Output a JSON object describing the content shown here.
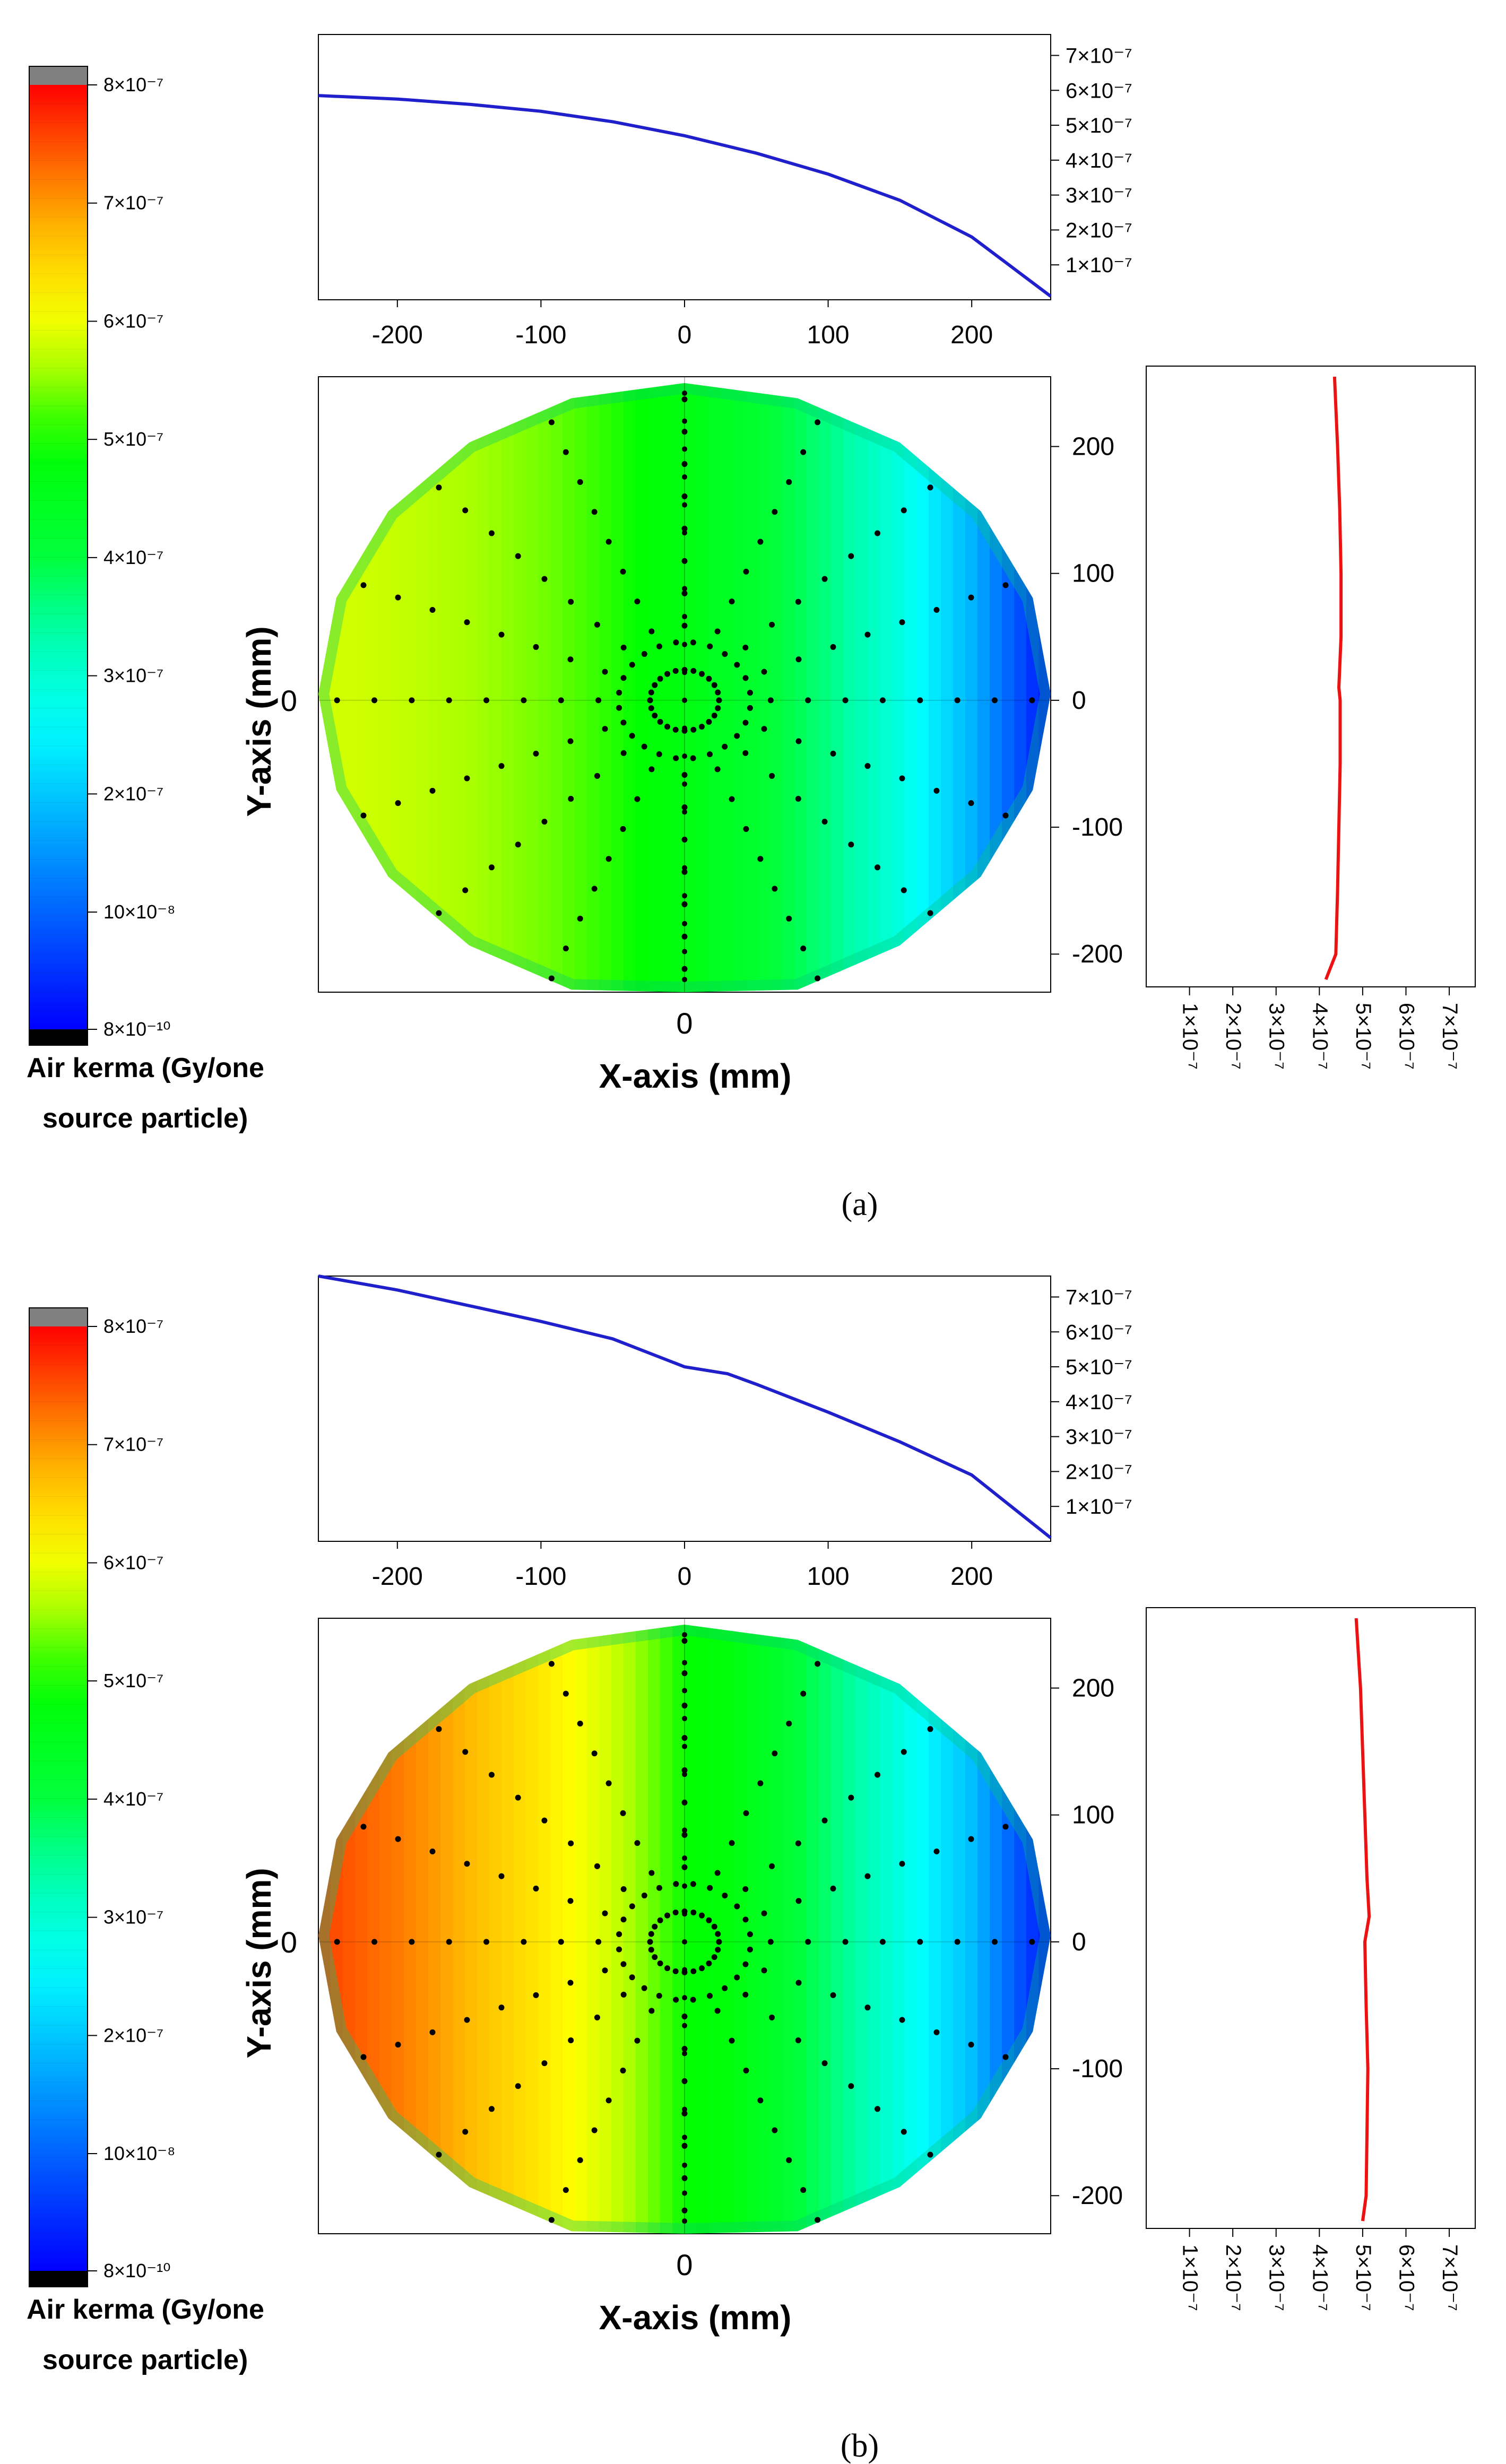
{
  "figure": {
    "colorbar_title_line1": "Air kerma (Gy/one",
    "colorbar_title_line2": "source particle)",
    "colorbar_tick_labels": [
      "8×10⁻⁷",
      "7×10⁻⁷",
      "6×10⁻⁷",
      "5×10⁻⁷",
      "4×10⁻⁷",
      "3×10⁻⁷",
      "2×10⁻⁷",
      "10×10⁻⁸",
      "8×10⁻¹⁰"
    ],
    "colorbar_tick_values": [
      8e-07,
      7e-07,
      6e-07,
      5e-07,
      4e-07,
      3e-07,
      2e-07,
      1e-07,
      8e-10
    ],
    "colors": {
      "profile_x": "#1f1fcc",
      "profile_y": "#ee1111",
      "axis": "#000000",
      "grid": "#c8c8c8",
      "scale": [
        "#000000",
        "#0000ff",
        "#0060ff",
        "#00c8ff",
        "#00ffff",
        "#00ffb0",
        "#00ff30",
        "#00ff00",
        "#a8ff00",
        "#ffff00",
        "#ffd000",
        "#ff9900",
        "#ff5000",
        "#ff0000",
        "#808080"
      ]
    }
  },
  "chart_data": [
    {
      "panel": "(a)",
      "type": "heatmap",
      "title": "",
      "xlabel": "X-axis (mm)",
      "ylabel": "Y-axis (mm)",
      "xlim": [
        -255,
        255
      ],
      "ylim": [
        -230,
        255
      ],
      "x_tick_label": "0",
      "y_tick_label": "0",
      "colorbar_range": [
        8e-10,
        8e-07
      ],
      "gradient_description": "high on left (yellow), decreasing to right (blue)",
      "profile_x": {
        "type": "line",
        "xlim": [
          -255,
          255
        ],
        "x_ticks": [
          -200,
          -100,
          0,
          100,
          200
        ],
        "y_ticks": [
          1e-07,
          2e-07,
          3e-07,
          4e-07,
          5e-07,
          6e-07,
          7e-07
        ],
        "y_tick_labels": [
          "1×10⁻⁷",
          "2×10⁻⁷",
          "3×10⁻⁷",
          "4×10⁻⁷",
          "5×10⁻⁷",
          "6×10⁻⁷",
          "7×10⁻⁷"
        ],
        "ylim": [
          0,
          7.6e-07
        ],
        "x": [
          -255,
          -200,
          -150,
          -100,
          -50,
          0,
          50,
          100,
          150,
          200,
          255
        ],
        "values": [
          5.85e-07,
          5.75e-07,
          5.6e-07,
          5.4e-07,
          5.1e-07,
          4.7e-07,
          4.2e-07,
          3.6e-07,
          2.85e-07,
          1.8e-07,
          1e-08
        ]
      },
      "profile_y": {
        "type": "line",
        "ylim": [
          -230,
          255
        ],
        "y_ticks": [
          -200,
          -100,
          0,
          100,
          200
        ],
        "x_ticks": [
          1e-07,
          2e-07,
          3e-07,
          4e-07,
          5e-07,
          6e-07,
          7e-07
        ],
        "x_tick_labels": [
          "1×10⁻⁷",
          "2×10⁻⁷",
          "3×10⁻⁷",
          "4×10⁻⁷",
          "5×10⁻⁷",
          "6×10⁻⁷",
          "7×10⁻⁷"
        ],
        "xlim": [
          0,
          7.6e-07
        ],
        "y": [
          255,
          200,
          150,
          100,
          50,
          10,
          0,
          -50,
          -100,
          -150,
          -200,
          -220
        ],
        "values": [
          4.35e-07,
          4.42e-07,
          4.47e-07,
          4.5e-07,
          4.5e-07,
          4.45e-07,
          4.48e-07,
          4.48e-07,
          4.45e-07,
          4.42e-07,
          4.38e-07,
          4.15e-07
        ]
      }
    },
    {
      "panel": "(b)",
      "type": "heatmap",
      "title": "",
      "xlabel": "X-axis (mm)",
      "ylabel": "Y-axis (mm)",
      "xlim": [
        -255,
        255
      ],
      "ylim": [
        -230,
        255
      ],
      "x_tick_label": "0",
      "y_tick_label": "0",
      "colorbar_range": [
        8e-10,
        8e-07
      ],
      "gradient_description": "high on left (red), decreasing to right (blue)",
      "profile_x": {
        "type": "line",
        "xlim": [
          -255,
          255
        ],
        "x_ticks": [
          -200,
          -100,
          0,
          100,
          200
        ],
        "y_ticks": [
          1e-07,
          2e-07,
          3e-07,
          4e-07,
          5e-07,
          6e-07,
          7e-07
        ],
        "y_tick_labels": [
          "1×10⁻⁷",
          "2×10⁻⁷",
          "3×10⁻⁷",
          "4×10⁻⁷",
          "5×10⁻⁷",
          "6×10⁻⁷",
          "7×10⁻⁷"
        ],
        "ylim": [
          0,
          7.6e-07
        ],
        "x": [
          -255,
          -200,
          -150,
          -100,
          -50,
          0,
          30,
          50,
          100,
          150,
          200,
          255
        ],
        "values": [
          7.6e-07,
          7.2e-07,
          6.75e-07,
          6.3e-07,
          5.8e-07,
          5e-07,
          4.8e-07,
          4.5e-07,
          3.7e-07,
          2.85e-07,
          1.9e-07,
          1e-08
        ]
      },
      "profile_y": {
        "type": "line",
        "ylim": [
          -230,
          255
        ],
        "y_ticks": [
          -200,
          -100,
          0,
          100,
          200
        ],
        "x_ticks": [
          1e-07,
          2e-07,
          3e-07,
          4e-07,
          5e-07,
          6e-07,
          7e-07
        ],
        "x_tick_labels": [
          "1×10⁻⁷",
          "2×10⁻⁷",
          "3×10⁻⁷",
          "4×10⁻⁷",
          "5×10⁻⁷",
          "6×10⁻⁷",
          "7×10⁻⁷"
        ],
        "xlim": [
          0,
          7.6e-07
        ],
        "y": [
          255,
          200,
          150,
          100,
          50,
          20,
          0,
          -50,
          -100,
          -150,
          -200,
          -220
        ],
        "values": [
          4.85e-07,
          4.95e-07,
          5e-07,
          5.05e-07,
          5.1e-07,
          5.15e-07,
          5.05e-07,
          5.08e-07,
          5.12e-07,
          5.1e-07,
          5.08e-07,
          5e-07
        ]
      }
    }
  ],
  "captions": [
    "(a)",
    "(b)"
  ]
}
